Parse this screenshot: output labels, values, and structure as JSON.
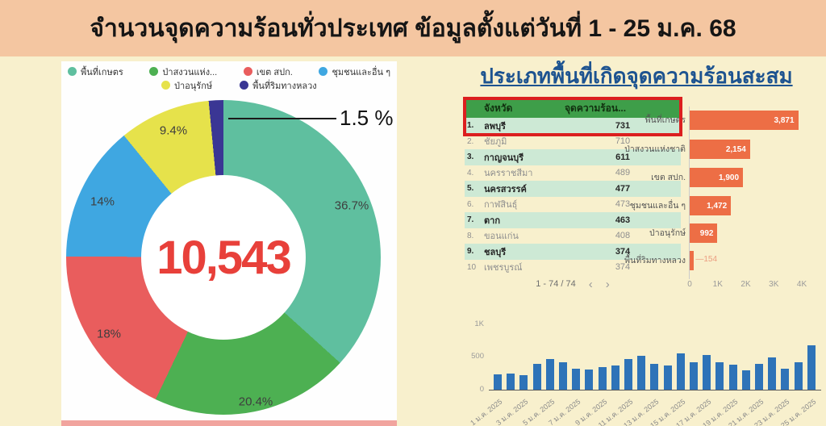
{
  "header": {
    "title": "จำนวนจุดความร้อนทั่วประเทศ ข้อมูลตั้งแต่วันที่ 1 - 25 ม.ค. 68"
  },
  "right_panel": {
    "title": "ประเภทพื้นที่เกิดจุดความร้อนสะสม"
  },
  "table": {
    "headers": {
      "province": "จังหวัด",
      "hotspots": "จุดความร้อน..."
    },
    "rows": [
      {
        "rank": "1.",
        "province": "ลพบุรี",
        "value": "731"
      },
      {
        "rank": "2.",
        "province": "ชัยภูมิ",
        "value": "710"
      },
      {
        "rank": "3.",
        "province": "กาญจนบุรี",
        "value": "611"
      },
      {
        "rank": "4.",
        "province": "นครราชสีมา",
        "value": "489"
      },
      {
        "rank": "5.",
        "province": "นครสวรรค์",
        "value": "477"
      },
      {
        "rank": "6.",
        "province": "กาฬสินธุ์",
        "value": "473"
      },
      {
        "rank": "7.",
        "province": "ตาก",
        "value": "463"
      },
      {
        "rank": "8.",
        "province": "ขอนแก่น",
        "value": "408"
      },
      {
        "rank": "9.",
        "province": "ชลบุรี",
        "value": "374"
      },
      {
        "rank": "10",
        "province": "เพชรบูรณ์",
        "value": "374"
      }
    ],
    "pagination": "1 - 74 / 74",
    "prev_icon": "‹",
    "next_icon": "›"
  },
  "chart_data": [
    {
      "type": "pie",
      "subtype": "donut",
      "total_label": "10,543",
      "callout_label": "1.5 %",
      "slices": [
        {
          "label": "พื้นที่เกษตร",
          "legend_label": "พื้นที่เกษตร",
          "pct": 36.7,
          "pct_label": "36.7%",
          "color": "#5fbf9f"
        },
        {
          "label": "ป่าสงวนแห่งชาติ",
          "legend_label": "ป่าสงวนแห่ง...",
          "pct": 20.4,
          "pct_label": "20.4%",
          "color": "#4db052"
        },
        {
          "label": "เขต สปก.",
          "legend_label": "เขต สปก.",
          "pct": 18.0,
          "pct_label": "18%",
          "color": "#e95d5d"
        },
        {
          "label": "ชุมชนและอื่น ๆ",
          "legend_label": "ชุมชนและอื่น ๆ",
          "pct": 14.0,
          "pct_label": "14%",
          "color": "#3fa7e1"
        },
        {
          "label": "ป่าอนุรักษ์",
          "legend_label": "ป่าอนุรักษ์",
          "pct": 9.4,
          "pct_label": "9.4%",
          "color": "#e6e24b"
        },
        {
          "label": "พื้นที่ริมทางหลวง",
          "legend_label": "พื้นที่ริมทางหลวง",
          "pct": 1.5,
          "pct_label": "1.5 %",
          "color": "#3a3694"
        }
      ],
      "legend_position": "top"
    },
    {
      "type": "bar",
      "orientation": "horizontal",
      "categories": [
        "พื้นที่เกษตร",
        "ป่าสงวนแห่งชาติ",
        "เขต สปก.",
        "ชุมชนและอื่น ๆ",
        "ป่าอนุรักษ์",
        "พื้นที่ริมทางหลวง"
      ],
      "values": [
        3871,
        2154,
        1900,
        1472,
        992,
        154
      ],
      "value_labels": [
        "3,871",
        "2,154",
        "1,900",
        "1,472",
        "992",
        "154"
      ],
      "xticks": [
        "0",
        "1K",
        "2K",
        "3K",
        "4K"
      ],
      "xlim": [
        0,
        4000
      ],
      "bar_color": "#ed6e45",
      "outside_label_color": "#eb9d80",
      "grid": false
    },
    {
      "type": "bar",
      "orientation": "vertical",
      "x_description": "daily hotspots 1-25 Jan 2025",
      "values": [
        240,
        250,
        225,
        405,
        480,
        430,
        320,
        310,
        355,
        380,
        480,
        525,
        405,
        380,
        560,
        430,
        540,
        430,
        390,
        305,
        405,
        500,
        330,
        425,
        690
      ],
      "tick_labels": [
        "1 ม.ค. 2025",
        "3 ม.ค. 2025",
        "5 ม.ค. 2025",
        "7 ม.ค. 2025",
        "9 ม.ค. 2025",
        "11 ม.ค. 2025",
        "13 ม.ค. 2025",
        "15 ม.ค. 2025",
        "17 ม.ค. 2025",
        "19 ม.ค. 2025",
        "21 ม.ค. 2025",
        "23 ม.ค. 2025",
        "25 ม.ค. 2025"
      ],
      "tick_every": 2,
      "yticks": [
        "0",
        "500",
        "1K"
      ],
      "ylim": [
        0,
        1000
      ],
      "bar_color": "#2e73b8",
      "grid": false
    }
  ],
  "colors": {
    "page_bg": "#f8f0cd",
    "banner_bg": "#f4c6a1",
    "panel_bg": "#fefefe",
    "right_title_blue": "#1d5390",
    "table_header_green": "#3e9e49",
    "table_row_green": "#cde9d5",
    "highlight_red": "#dc1f1f",
    "total_red": "#e8403a",
    "bottom_strip_pink": "#f1a49e"
  }
}
